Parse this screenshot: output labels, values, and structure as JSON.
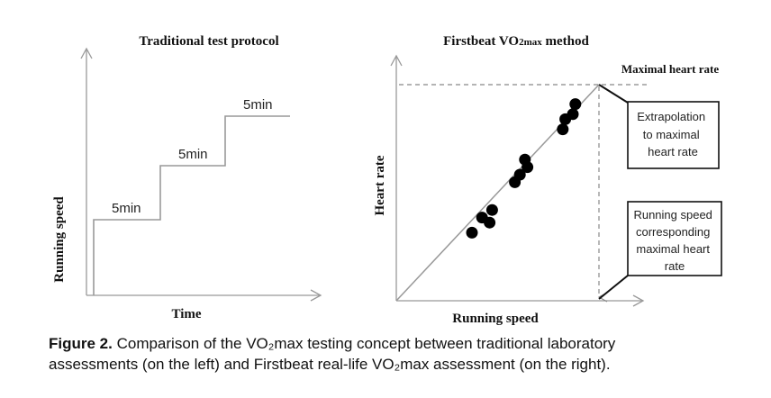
{
  "chart_data": [
    {
      "type": "line",
      "title": "Traditional test protocol",
      "xlabel": "Time",
      "ylabel": "Running speed",
      "steps": [
        {
          "label": "5min",
          "level": 1
        },
        {
          "label": "5min",
          "level": 2
        },
        {
          "label": "5min",
          "level": 3
        }
      ]
    },
    {
      "type": "scatter",
      "title_main": "Firstbeat VO",
      "title_sub": "2max",
      "title_end": " method",
      "xlabel": "Running speed",
      "ylabel": "Heart rate",
      "annotations": {
        "max_hr": "Maximal heart rate",
        "extrapolation": [
          "Extrapolation",
          "to maximal",
          "heart rate"
        ],
        "speed_at_max": [
          "Running speed",
          "corresponding",
          "maximal heart",
          "rate"
        ]
      },
      "points": [
        {
          "x": 0.3,
          "y": 0.27
        },
        {
          "x": 0.34,
          "y": 0.33
        },
        {
          "x": 0.37,
          "y": 0.31
        },
        {
          "x": 0.38,
          "y": 0.36
        },
        {
          "x": 0.47,
          "y": 0.47
        },
        {
          "x": 0.49,
          "y": 0.5
        },
        {
          "x": 0.52,
          "y": 0.53
        },
        {
          "x": 0.51,
          "y": 0.56
        },
        {
          "x": 0.66,
          "y": 0.68
        },
        {
          "x": 0.67,
          "y": 0.72
        },
        {
          "x": 0.7,
          "y": 0.74
        },
        {
          "x": 0.71,
          "y": 0.78
        }
      ]
    }
  ],
  "caption": {
    "label": "Figure 2.",
    "line1": " Comparison of the VO₂max testing concept between traditional laboratory",
    "line2": "assessments (on the left) and Firstbeat real-life VO₂max assessment (on the right)."
  }
}
